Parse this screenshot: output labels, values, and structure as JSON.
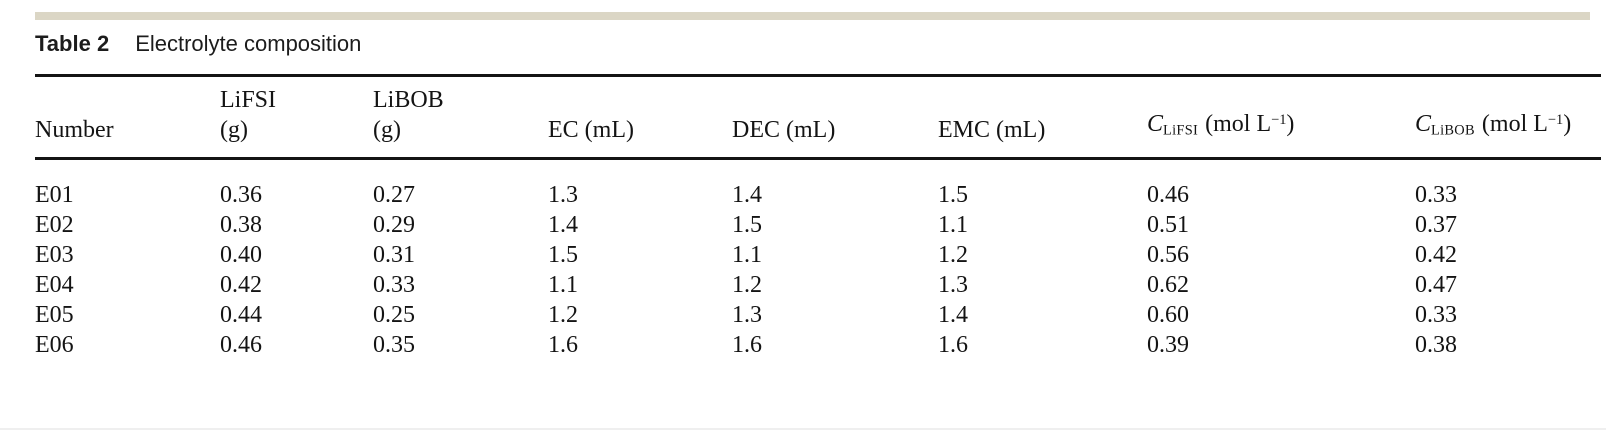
{
  "caption": {
    "label": "Table 2",
    "title": "Electrolyte composition"
  },
  "table": {
    "header": {
      "number": "Number",
      "lifsi": {
        "line1": "LiFSI",
        "line2": "(g)"
      },
      "libob": {
        "line1": "LiBOB",
        "line2": "(g)"
      },
      "ec": "EC (mL)",
      "dec": "DEC (mL)",
      "emc": "EMC (mL)",
      "c_lifsi": {
        "symbol": "C",
        "sub": "LiFSI",
        "unit": "(mol L",
        "exp": "−1",
        "close": ")"
      },
      "c_libob": {
        "symbol": "C",
        "sub": "LiBOB",
        "unit": "(mol L",
        "exp": "−1",
        "close": ")"
      }
    },
    "rows": [
      [
        "E01",
        "0.36",
        "0.27",
        "1.3",
        "1.4",
        "1.5",
        "0.46",
        "0.33"
      ],
      [
        "E02",
        "0.38",
        "0.29",
        "1.4",
        "1.5",
        "1.1",
        "0.51",
        "0.37"
      ],
      [
        "E03",
        "0.40",
        "0.31",
        "1.5",
        "1.1",
        "1.2",
        "0.56",
        "0.42"
      ],
      [
        "E04",
        "0.42",
        "0.33",
        "1.1",
        "1.2",
        "1.3",
        "0.62",
        "0.47"
      ],
      [
        "E05",
        "0.44",
        "0.25",
        "1.2",
        "1.3",
        "1.4",
        "0.60",
        "0.33"
      ],
      [
        "E06",
        "0.46",
        "0.35",
        "1.6",
        "1.6",
        "1.6",
        "0.39",
        "0.38"
      ]
    ]
  },
  "colors": {
    "accent_bar": "#dbd6c5",
    "rule": "#141414",
    "text": "#161616",
    "bottom_divider": "#efefef",
    "background": "#ffffff"
  }
}
